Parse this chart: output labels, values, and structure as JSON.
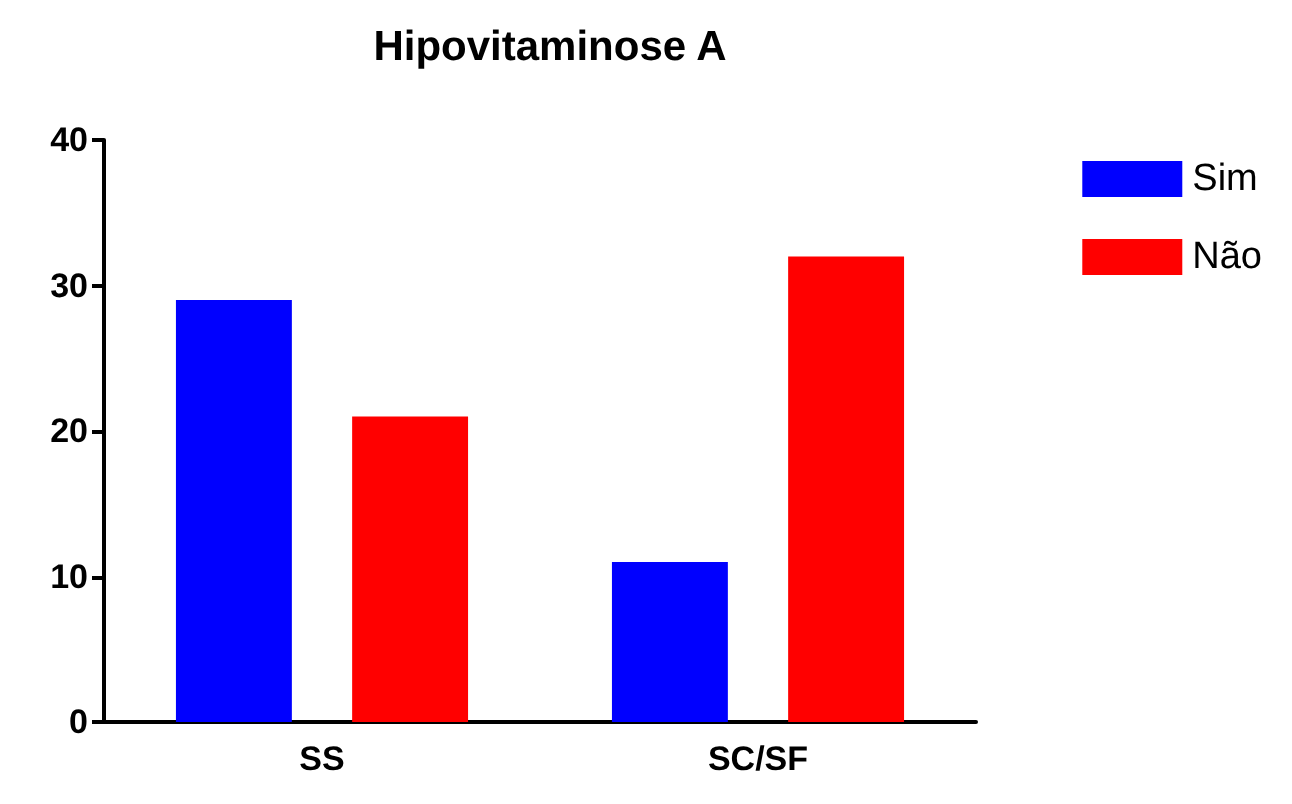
{
  "chart_data": {
    "type": "bar",
    "title": "Hipovitaminose A",
    "categories": [
      "SS",
      "SC/SF"
    ],
    "series": [
      {
        "name": "Sim",
        "color": "#0000ff",
        "values": [
          29,
          11
        ]
      },
      {
        "name": "Não",
        "color": "#ff0000",
        "values": [
          21,
          32
        ]
      }
    ],
    "ylim": [
      0,
      40
    ],
    "yticks": [
      0,
      10,
      20,
      30,
      40
    ],
    "grid": false,
    "legend": "top right"
  }
}
